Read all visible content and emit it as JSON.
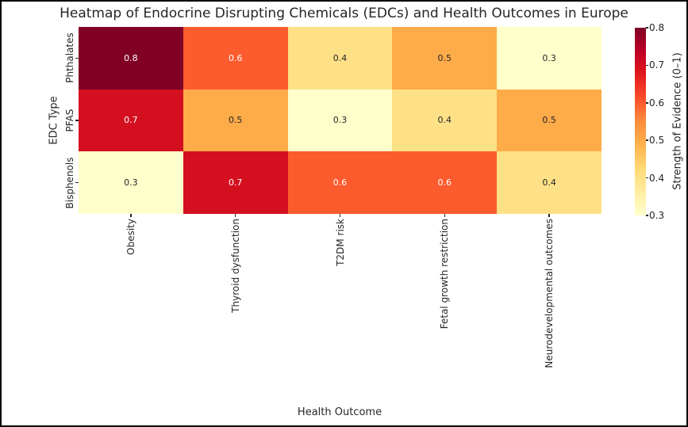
{
  "chart_data": {
    "type": "heatmap",
    "title": "Heatmap of Endocrine Disrupting Chemicals (EDCs) and Health Outcomes in Europe",
    "xlabel": "Health Outcome",
    "ylabel": "EDC Type",
    "categories_x": [
      "Obesity",
      "Thyroid dysfunction",
      "T2DM risk",
      "Fetal growth restriction",
      "Neurodevelopmental outcomes"
    ],
    "categories_y": [
      "Phthalates",
      "PFAS",
      "Bisphenols"
    ],
    "values": [
      [
        0.8,
        0.6,
        0.4,
        0.5,
        0.3
      ],
      [
        0.7,
        0.5,
        0.3,
        0.4,
        0.5
      ],
      [
        0.3,
        0.7,
        0.6,
        0.6,
        0.4
      ]
    ],
    "value_range": [
      0.3,
      0.8
    ],
    "colormap": "YlOrRd",
    "colormap_stops": [
      "#ffffcc",
      "#ffeda0",
      "#fed976",
      "#feb24c",
      "#fd8d3c",
      "#fc4e2a",
      "#e31a1c",
      "#bd0026",
      "#800026"
    ],
    "cell_colors": {
      "0.3": "#ffffcc",
      "0.4": "#fee187",
      "0.5": "#feab49",
      "0.6": "#fc5b2e",
      "0.7": "#d41020",
      "0.8": "#800026"
    },
    "annot_white_min": 0.6,
    "annot_dark_color": "#262626",
    "annot_light_color": "#ffffff",
    "colorbar": {
      "label": "Strength of Evidence (0–1)",
      "ticks": [
        0.8,
        0.7,
        0.6,
        0.5,
        0.4,
        0.3
      ]
    },
    "legend_position": "right-colorbar",
    "grid": false
  }
}
